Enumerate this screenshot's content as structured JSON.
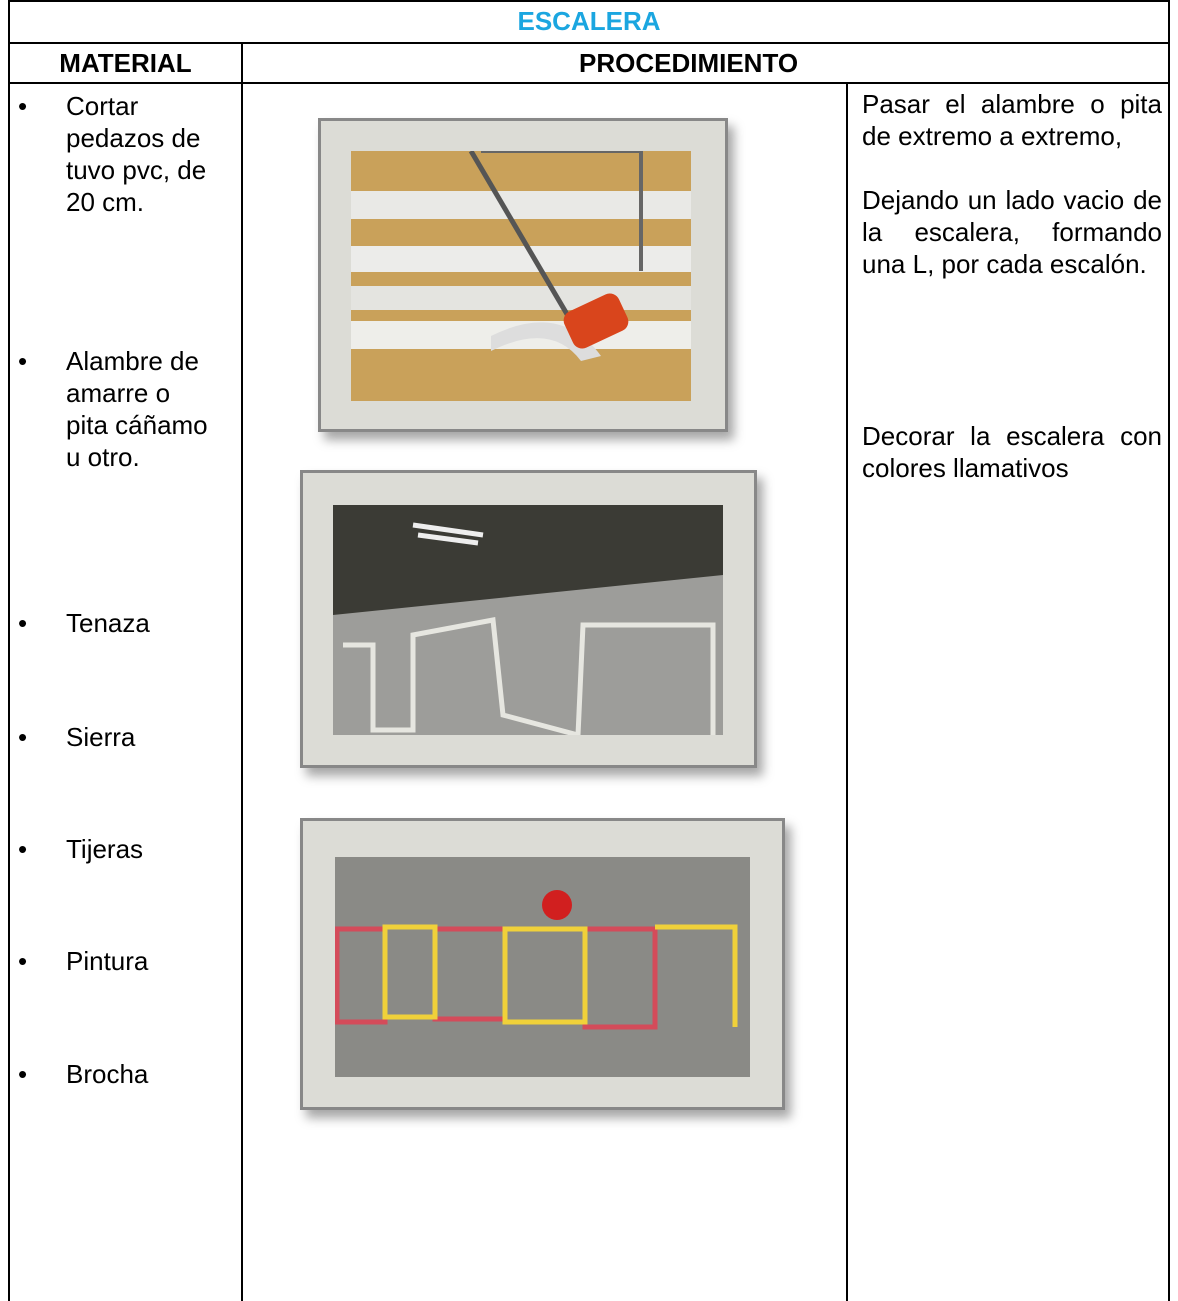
{
  "header": {
    "title": "ESCALERA",
    "columns": [
      "MATERIAL",
      "PROCEDIMIENTO"
    ]
  },
  "materials": [
    "Cortar pedazos de tuvo pvc, de 20 cm.",
    "Alambre de amarre o pita cáñamo u otro.",
    "Tenaza",
    "Sierra",
    "Tijeras",
    "Pintura",
    "Brocha"
  ],
  "procedure": {
    "steps": [
      "Pasar el alambre o pita  de extremo a extremo,",
      "Dejando un lado vacio de la escalera, formando una L, por cada escalón.",
      "Decorar la escalera con colores llamativos"
    ]
  }
}
